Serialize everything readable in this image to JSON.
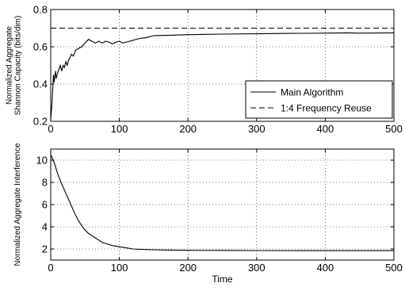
{
  "chart_data": [
    {
      "type": "line",
      "ylabel_lines": [
        "Normalized Aggregate",
        "Shannon Capacity (bits/dim)"
      ],
      "xlabel": "",
      "xlim": [
        0,
        500
      ],
      "ylim": [
        0.2,
        0.8
      ],
      "xticks": [
        0,
        100,
        200,
        300,
        400,
        500
      ],
      "yticks": [
        0.2,
        0.4,
        0.6,
        0.8
      ],
      "xtick_labels": [
        "0",
        "100",
        "200",
        "300",
        "400",
        "500"
      ],
      "ytick_labels": [
        "0.2",
        "0.4",
        "0.6",
        "0.8"
      ],
      "grid": true,
      "grid_style": "dotted",
      "legend_position": "lower-right",
      "series": [
        {
          "name": "Main Algorithm",
          "line_style": "solid",
          "color": "#000000",
          "x": [
            0,
            2,
            3,
            4,
            5,
            6,
            7,
            8,
            10,
            12,
            14,
            16,
            18,
            20,
            22,
            24,
            26,
            28,
            30,
            33,
            36,
            40,
            45,
            50,
            55,
            60,
            65,
            70,
            75,
            80,
            85,
            90,
            95,
            100,
            105,
            110,
            120,
            130,
            140,
            150,
            175,
            200,
            250,
            300,
            350,
            400,
            430,
            450,
            500
          ],
          "y": [
            0.21,
            0.3,
            0.38,
            0.45,
            0.41,
            0.44,
            0.47,
            0.43,
            0.46,
            0.48,
            0.5,
            0.47,
            0.5,
            0.49,
            0.52,
            0.5,
            0.53,
            0.54,
            0.56,
            0.55,
            0.58,
            0.59,
            0.6,
            0.62,
            0.64,
            0.63,
            0.62,
            0.63,
            0.62,
            0.63,
            0.625,
            0.615,
            0.625,
            0.63,
            0.62,
            0.625,
            0.635,
            0.645,
            0.65,
            0.66,
            0.662,
            0.665,
            0.668,
            0.67,
            0.672,
            0.673,
            0.675,
            0.673,
            0.675
          ]
        },
        {
          "name": "1:4 Frequency Reuse",
          "line_style": "dashed",
          "color": "#000000",
          "x": [
            0,
            500
          ],
          "y": [
            0.7,
            0.7
          ]
        }
      ]
    },
    {
      "type": "line",
      "ylabel_lines": [
        "Normalized Aggregate Interference"
      ],
      "xlabel": "Time",
      "xlim": [
        0,
        500
      ],
      "ylim": [
        1,
        11
      ],
      "xticks": [
        0,
        100,
        200,
        300,
        400,
        500
      ],
      "yticks": [
        2,
        4,
        6,
        8,
        10
      ],
      "xtick_labels": [
        "0",
        "100",
        "200",
        "300",
        "400",
        "500"
      ],
      "ytick_labels": [
        "2",
        "4",
        "6",
        "8",
        "10"
      ],
      "grid": true,
      "grid_style": "dotted",
      "series": [
        {
          "line_style": "solid",
          "color": "#000000",
          "x": [
            0,
            5,
            10,
            15,
            20,
            25,
            30,
            35,
            40,
            45,
            50,
            55,
            60,
            65,
            70,
            75,
            80,
            90,
            100,
            110,
            120,
            130,
            150,
            175,
            200,
            250,
            300,
            400,
            500
          ],
          "y": [
            10.5,
            9.8,
            8.8,
            8.0,
            7.3,
            6.6,
            5.9,
            5.2,
            4.6,
            4.1,
            3.7,
            3.4,
            3.2,
            3.0,
            2.8,
            2.6,
            2.5,
            2.3,
            2.2,
            2.1,
            2.0,
            1.97,
            1.93,
            1.9,
            1.88,
            1.87,
            1.86,
            1.85,
            1.85
          ]
        }
      ]
    }
  ]
}
